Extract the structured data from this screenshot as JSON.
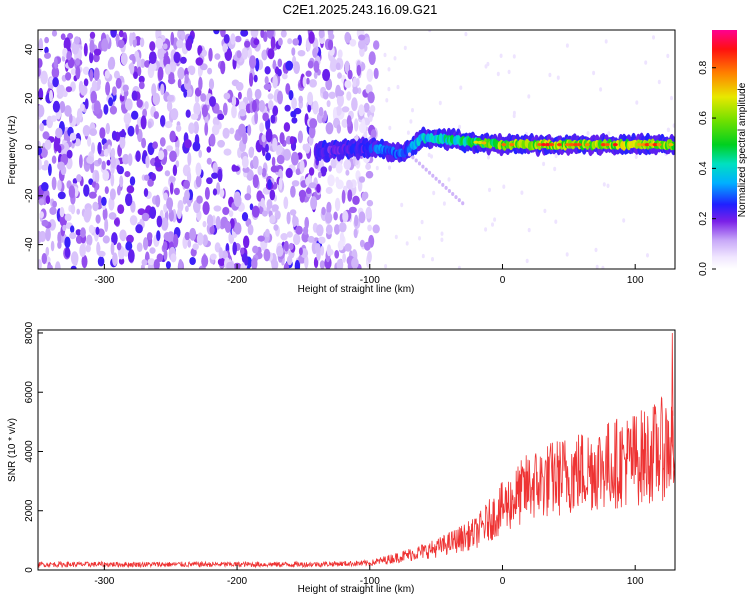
{
  "title": "C2E1.2025.243.16.09.G21",
  "chart_data": [
    {
      "type": "heatmap",
      "xlabel": "Height of straight line (km)",
      "ylabel": "Frequency (Hz)",
      "xlim": [
        -350,
        130
      ],
      "ylim": [
        -50,
        48
      ],
      "xticks": [
        "-300",
        "-200",
        "-100",
        "0",
        "100"
      ],
      "xtick_values": [
        -300,
        -200,
        -100,
        0,
        100
      ],
      "yticks": [
        "-40",
        "-20",
        "0",
        "20",
        "40"
      ],
      "ytick_values": [
        -40,
        -20,
        0,
        20,
        40
      ],
      "colorbar": {
        "label": "Normalized spectral amplitude",
        "range": [
          0,
          0.95
        ],
        "ticks": [
          "0.0",
          "0.2",
          "0.4",
          "0.6",
          "0.8"
        ],
        "tick_values": [
          0.0,
          0.2,
          0.4,
          0.6,
          0.8
        ]
      },
      "noise_region_x": [
        -350,
        -95
      ],
      "signal_track": [
        {
          "x": -140,
          "y": -2,
          "amp": 0.3
        },
        {
          "x": -100,
          "y": 0,
          "amp": 0.35
        },
        {
          "x": -90,
          "y": -1,
          "amp": 0.45
        },
        {
          "x": -75,
          "y": -3,
          "amp": 0.4
        },
        {
          "x": -60,
          "y": 4,
          "amp": 0.55
        },
        {
          "x": -40,
          "y": 3,
          "amp": 0.6
        },
        {
          "x": -20,
          "y": 2,
          "amp": 0.7
        },
        {
          "x": 0,
          "y": 1,
          "amp": 0.85
        },
        {
          "x": 40,
          "y": 1,
          "amp": 0.9
        },
        {
          "x": 80,
          "y": 1,
          "amp": 0.9
        },
        {
          "x": 130,
          "y": 1,
          "amp": 0.85
        }
      ]
    },
    {
      "type": "line",
      "xlabel": "Height of straight line (km)",
      "ylabel": "SNR (10 * v/v)",
      "xlim": [
        -350,
        130
      ],
      "ylim": [
        0,
        8100
      ],
      "xticks": [
        "-300",
        "-200",
        "-100",
        "0",
        "100"
      ],
      "xtick_values": [
        -300,
        -200,
        -100,
        0,
        100
      ],
      "yticks": [
        "0",
        "2000",
        "4000",
        "6000",
        "8000"
      ],
      "ytick_values": [
        0,
        2000,
        4000,
        6000,
        8000
      ],
      "series": [
        {
          "color": "#ee3333",
          "trend": [
            {
              "x": -350,
              "y": 180
            },
            {
              "x": -150,
              "y": 180
            },
            {
              "x": -100,
              "y": 220
            },
            {
              "x": -80,
              "y": 400
            },
            {
              "x": -50,
              "y": 700
            },
            {
              "x": -20,
              "y": 1200
            },
            {
              "x": 0,
              "y": 2000
            },
            {
              "x": 20,
              "y": 2700
            },
            {
              "x": 50,
              "y": 3100
            },
            {
              "x": 80,
              "y": 3400
            },
            {
              "x": 110,
              "y": 3700
            },
            {
              "x": 130,
              "y": 4100
            }
          ],
          "peak": {
            "x": 128,
            "y": 8000
          }
        }
      ]
    }
  ]
}
